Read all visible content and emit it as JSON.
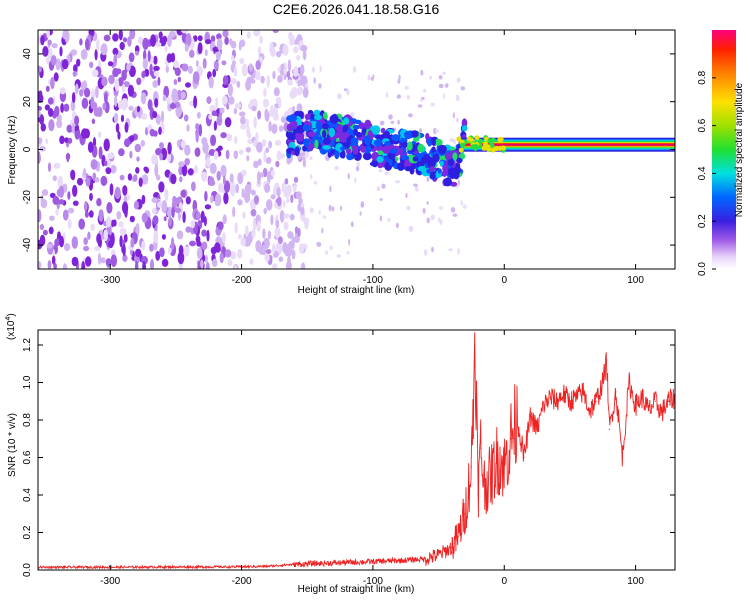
{
  "title": "C2E6.2026.041.18.58.G16",
  "colors": {
    "signal": "#ee2222",
    "axes": "#000000",
    "speckle": [
      "#eadcf8",
      "#d2b6f2",
      "#b98ae9",
      "#9d59e0",
      "#7f24d8"
    ]
  },
  "chart_data": [
    {
      "type": "heatmap",
      "name": "spectrogram",
      "xlabel": "Height of straight line (km)",
      "ylabel": "Frequency (Hz)",
      "xlim": [
        -355,
        130
      ],
      "ylim": [
        -50,
        50
      ],
      "x_ticks": [
        {
          "value": -300,
          "label": "-300"
        },
        {
          "value": -200,
          "label": "-200"
        },
        {
          "value": -100,
          "label": "-100"
        },
        {
          "value": 0,
          "label": "0"
        },
        {
          "value": 100,
          "label": "100"
        }
      ],
      "y_ticks": [
        {
          "value": 40,
          "label": "40"
        },
        {
          "value": 20,
          "label": "20"
        },
        {
          "value": 0,
          "label": "0"
        },
        {
          "value": -20,
          "label": "-20"
        },
        {
          "value": -40,
          "label": "-40"
        }
      ],
      "noise_region_km": [
        -355,
        -160
      ],
      "signal_track": {
        "x": [
          -160,
          -150,
          -140,
          -130,
          -120,
          -110,
          -100,
          -90,
          -80,
          -70,
          -60,
          -50,
          -40,
          -35,
          -30,
          -20,
          -10,
          0,
          15,
          30,
          60,
          100,
          130
        ],
        "freq": [
          6,
          8,
          7,
          6,
          5,
          4,
          2,
          1,
          0,
          -1,
          -2,
          -5,
          -7,
          -6,
          4,
          4,
          3,
          2,
          1,
          2,
          2,
          2,
          2
        ],
        "amplitude": [
          0.2,
          0.25,
          0.3,
          0.3,
          0.3,
          0.35,
          0.35,
          0.4,
          0.4,
          0.45,
          0.5,
          0.5,
          0.5,
          0.55,
          0.6,
          0.65,
          0.7,
          0.75,
          0.8,
          0.9,
          1.0,
          1.0,
          1.0
        ]
      },
      "colorbar": {
        "label": "Normalized spectral amplitude",
        "range": [
          0,
          1
        ],
        "ticks": [
          {
            "value": 0.0,
            "label": "0.0"
          },
          {
            "value": 0.2,
            "label": "0.2"
          },
          {
            "value": 0.4,
            "label": "0.4"
          },
          {
            "value": 0.6,
            "label": "0.6"
          },
          {
            "value": 0.8,
            "label": "0.8"
          }
        ]
      }
    },
    {
      "type": "line",
      "name": "snr",
      "xlabel": "Height of straight line (km)",
      "ylabel": "SNR (10 * v/v)",
      "scale_label": "(x10^4)",
      "scale_base": "(x10",
      "scale_exp": "4",
      "scale_close": ")",
      "xlim": [
        -355,
        130
      ],
      "ylim": [
        0,
        1.28
      ],
      "x_ticks": [
        {
          "value": -300,
          "label": "-300"
        },
        {
          "value": -200,
          "label": "-200"
        },
        {
          "value": -100,
          "label": "-100"
        },
        {
          "value": 0,
          "label": "0"
        },
        {
          "value": 100,
          "label": "100"
        }
      ],
      "y_ticks": [
        {
          "value": 0.0,
          "label": "0.0"
        },
        {
          "value": 0.2,
          "label": "0.2"
        },
        {
          "value": 0.4,
          "label": "0.4"
        },
        {
          "value": 0.6,
          "label": "0.6"
        },
        {
          "value": 0.8,
          "label": "0.8"
        },
        {
          "value": 1.0,
          "label": "1.0"
        },
        {
          "value": 1.2,
          "label": "1.2"
        }
      ],
      "series": [
        {
          "name": "SNR",
          "x": [
            -355,
            -300,
            -250,
            -200,
            -180,
            -160,
            -140,
            -120,
            -100,
            -80,
            -60,
            -50,
            -40,
            -35,
            -30,
            -25,
            -22,
            -20,
            -18,
            -15,
            -10,
            -5,
            0,
            5,
            10,
            15,
            20,
            25,
            30,
            35,
            40,
            45,
            50,
            55,
            60,
            65,
            70,
            75,
            78,
            80,
            85,
            90,
            95,
            100,
            105,
            110,
            115,
            120,
            125,
            130
          ],
          "y": [
            0.015,
            0.015,
            0.016,
            0.017,
            0.02,
            0.03,
            0.035,
            0.04,
            0.045,
            0.05,
            0.06,
            0.08,
            0.12,
            0.18,
            0.3,
            0.55,
            1.28,
            0.4,
            0.65,
            0.45,
            0.5,
            0.6,
            0.55,
            0.7,
            0.8,
            0.6,
            0.82,
            0.75,
            0.88,
            0.92,
            0.9,
            0.94,
            0.9,
            0.92,
            0.95,
            0.85,
            0.9,
            1.0,
            1.12,
            0.75,
            0.95,
            0.6,
            1.0,
            0.88,
            0.92,
            0.85,
            0.9,
            0.84,
            0.9,
            0.92
          ]
        }
      ]
    }
  ]
}
